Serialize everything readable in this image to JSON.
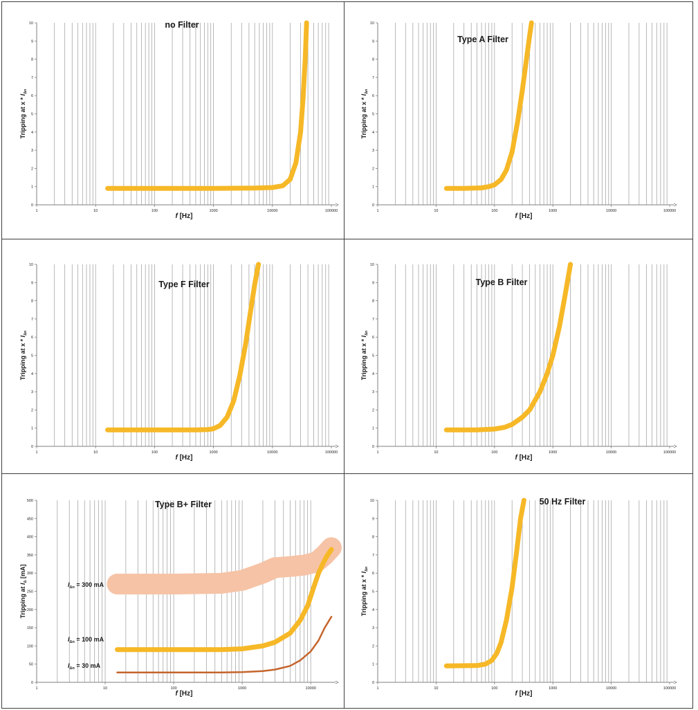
{
  "colors": {
    "grid": "#a6a6a6",
    "axis": "#7f7f7f",
    "curve": "#f6b827",
    "curve_300mA": "#f6c3a6",
    "curve_30mA": "#c5642b",
    "text": "#1a1a1a"
  },
  "chart_data": [
    {
      "type": "line",
      "title": "no Filter",
      "xlabel_symbol": "f",
      "xlabel_unit": "[Hz]",
      "ylabel": "Tripping at x * I",
      "ylabel_sub": "Δn",
      "x_scale": "log",
      "xlim": [
        1,
        100000
      ],
      "ylim": [
        0,
        10
      ],
      "x_ticks": [
        "1",
        "10",
        "100",
        "1000",
        "10000",
        "100000"
      ],
      "y_ticks": [
        "0",
        "1",
        "2",
        "3",
        "4",
        "5",
        "6",
        "7",
        "8",
        "9",
        "10"
      ],
      "grid": "vertical",
      "series": [
        {
          "weight": "thick",
          "color": "#f6b827",
          "x": [
            16,
            50,
            200,
            1000,
            5000,
            10000,
            15000,
            20000,
            25000,
            30000,
            33000,
            36000,
            38000
          ],
          "y": [
            0.9,
            0.9,
            0.9,
            0.9,
            0.92,
            0.95,
            1.05,
            1.4,
            2.3,
            4.0,
            5.8,
            8.0,
            10.0
          ]
        }
      ]
    },
    {
      "type": "line",
      "title": "Type A Filter",
      "xlabel_symbol": "f",
      "xlabel_unit": "[Hz]",
      "ylabel": "Tripping at x * I",
      "ylabel_sub": "Δn",
      "x_scale": "log",
      "xlim": [
        1,
        100000
      ],
      "ylim": [
        0,
        10
      ],
      "x_ticks": [
        "1",
        "10",
        "100",
        "1000",
        "10000",
        "100000"
      ],
      "y_ticks": [
        "0",
        "1",
        "2",
        "3",
        "4",
        "5",
        "6",
        "7",
        "8",
        "9",
        "10"
      ],
      "grid": "vertical",
      "series": [
        {
          "weight": "thick",
          "color": "#f6b827",
          "x": [
            15,
            30,
            60,
            80,
            100,
            130,
            160,
            200,
            250,
            300,
            350,
            400,
            430
          ],
          "y": [
            0.9,
            0.9,
            0.93,
            1.0,
            1.1,
            1.4,
            1.9,
            2.9,
            4.6,
            6.3,
            7.9,
            9.3,
            10.0
          ]
        }
      ]
    },
    {
      "type": "line",
      "title": "Type F Filter",
      "xlabel_symbol": "f",
      "xlabel_unit": "[Hz]",
      "ylabel": "Tripping at x * I",
      "ylabel_sub": "Δn",
      "x_scale": "log",
      "xlim": [
        1,
        100000
      ],
      "ylim": [
        0,
        10
      ],
      "x_ticks": [
        "1",
        "10",
        "100",
        "1000",
        "10000",
        "100000"
      ],
      "y_ticks": [
        "0",
        "1",
        "2",
        "3",
        "4",
        "5",
        "6",
        "7",
        "8",
        "9",
        "10"
      ],
      "grid": "vertical",
      "series": [
        {
          "weight": "thick",
          "color": "#f6b827",
          "x": [
            16,
            100,
            500,
            800,
            1000,
            1300,
            1700,
            2200,
            2800,
            3500,
            4200,
            5000,
            5800
          ],
          "y": [
            0.9,
            0.9,
            0.9,
            0.92,
            0.97,
            1.15,
            1.6,
            2.5,
            3.9,
            5.6,
            7.3,
            8.9,
            10.0
          ]
        }
      ]
    },
    {
      "type": "line",
      "title": "Type B Filter",
      "xlabel_symbol": "f",
      "xlabel_unit": "[Hz]",
      "ylabel": "Tripping at x * I",
      "ylabel_sub": "Δn",
      "x_scale": "log",
      "xlim": [
        1,
        100000
      ],
      "ylim": [
        0,
        10
      ],
      "x_ticks": [
        "1",
        "10",
        "100",
        "1000",
        "10000",
        "100000"
      ],
      "y_ticks": [
        "0",
        "1",
        "2",
        "3",
        "4",
        "5",
        "6",
        "7",
        "8",
        "9",
        "10"
      ],
      "grid": "vertical",
      "series": [
        {
          "weight": "thick",
          "color": "#f6b827",
          "x": [
            15,
            50,
            100,
            150,
            200,
            300,
            400,
            600,
            800,
            1000,
            1300,
            1600,
            2000
          ],
          "y": [
            0.9,
            0.9,
            0.95,
            1.05,
            1.2,
            1.6,
            2.0,
            3.0,
            4.0,
            5.0,
            6.6,
            8.2,
            10.0
          ]
        }
      ]
    },
    {
      "type": "line",
      "title": "Type B+ Filter",
      "xlabel_symbol": "f",
      "xlabel_unit": "[Hz]",
      "ylabel": "Tripping at I",
      "ylabel_sub": "Δ",
      "ylabel_unit": "[mA]",
      "x_scale": "log",
      "xlim": [
        1,
        20000
      ],
      "ylim": [
        0,
        500
      ],
      "x_ticks": [
        "1",
        "10",
        "100",
        "1000",
        "10000"
      ],
      "y_ticks": [
        "0",
        "50",
        "100",
        "150",
        "200",
        "250",
        "300",
        "350",
        "400",
        "450",
        "500"
      ],
      "grid": "vertical",
      "series": [
        {
          "name_sym": "I",
          "name_sub": "Δn",
          "name": "= 300 mA",
          "weight": "band",
          "color": "#f6c3a6",
          "x": [
            15,
            100,
            500,
            1000,
            2000,
            3000,
            5000,
            8000,
            12000,
            16000,
            20000
          ],
          "y": [
            270,
            270,
            272,
            280,
            300,
            315,
            318,
            322,
            330,
            350,
            370
          ]
        },
        {
          "name_sym": "I",
          "name_sub": "Δn",
          "name": "= 100 mA",
          "weight": "thick",
          "color": "#f6b827",
          "x": [
            15,
            100,
            500,
            1000,
            2000,
            3000,
            5000,
            7000,
            9000,
            11000,
            13000,
            15000,
            17000,
            20000
          ],
          "y": [
            90,
            90,
            90,
            92,
            100,
            110,
            135,
            170,
            210,
            260,
            300,
            325,
            345,
            365
          ]
        },
        {
          "name_sym": "I",
          "name_sub": "Δn",
          "name": "= 30 mA",
          "weight": "thin",
          "color": "#c5642b",
          "x": [
            15,
            100,
            500,
            1000,
            2000,
            3000,
            5000,
            7000,
            10000,
            13000,
            16000,
            20000
          ],
          "y": [
            27,
            27,
            27,
            28,
            31,
            35,
            45,
            60,
            85,
            115,
            150,
            180
          ]
        }
      ]
    },
    {
      "type": "line",
      "title": "50 Hz Filter",
      "xlabel_symbol": "f",
      "xlabel_unit": "[Hz]",
      "ylabel": "Tripping at x * I",
      "ylabel_sub": "Δn",
      "x_scale": "log",
      "xlim": [
        1,
        100000
      ],
      "ylim": [
        0,
        10
      ],
      "x_ticks": [
        "1",
        "10",
        "100",
        "1000",
        "10000",
        "100000"
      ],
      "y_ticks": [
        "0",
        "1",
        "2",
        "3",
        "4",
        "5",
        "6",
        "7",
        "8",
        "9",
        "10"
      ],
      "grid": "vertical",
      "series": [
        {
          "weight": "thick",
          "color": "#f6b827",
          "x": [
            15,
            50,
            70,
            90,
            110,
            130,
            160,
            200,
            240,
            280,
            320
          ],
          "y": [
            0.9,
            0.92,
            1.0,
            1.2,
            1.6,
            2.2,
            3.4,
            5.2,
            7.2,
            9.0,
            10.0
          ]
        }
      ]
    }
  ]
}
